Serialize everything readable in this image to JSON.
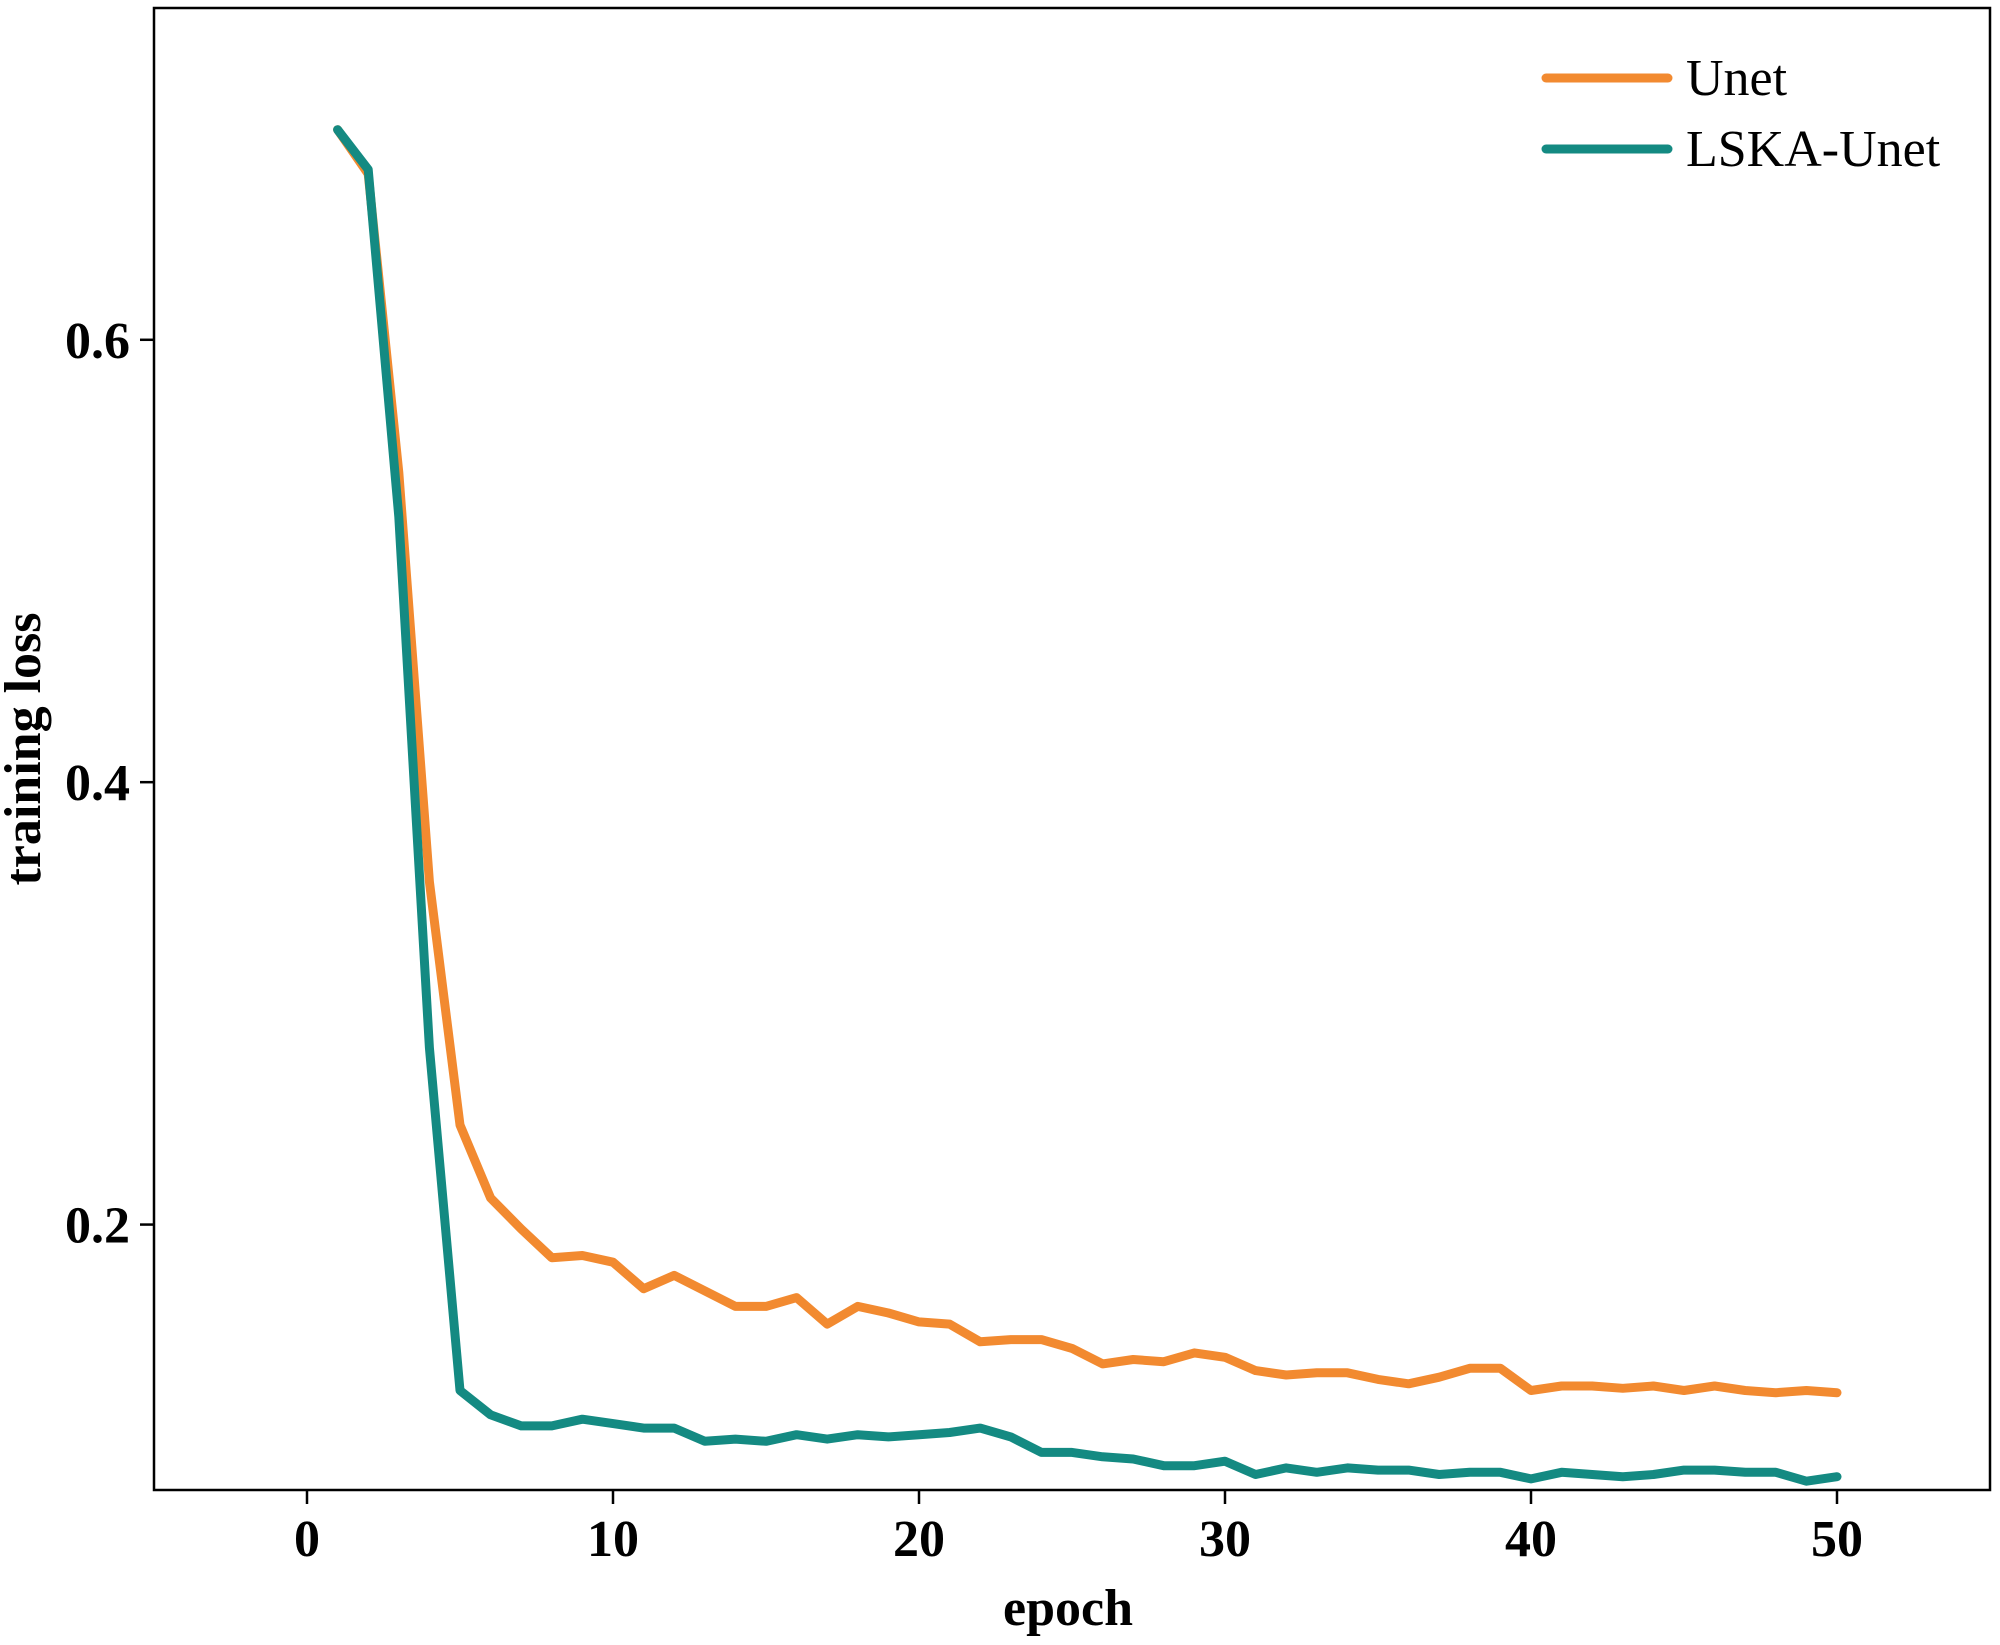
{
  "chart_data": {
    "type": "line",
    "title": "",
    "xlabel": "epoch",
    "ylabel": "training loss",
    "xlim": [
      -5,
      55
    ],
    "ylim": [
      0.08,
      0.75
    ],
    "xticks": [
      0,
      10,
      20,
      30,
      40,
      50
    ],
    "yticks": [
      0.2,
      0.4,
      0.6
    ],
    "xtick_labels": [
      "0",
      "10",
      "20",
      "30",
      "40",
      "50"
    ],
    "ytick_labels": [
      "0.2",
      "0.4",
      "0.6"
    ],
    "grid": false,
    "legend_position": "top-right",
    "x": [
      1,
      2,
      3,
      4,
      5,
      6,
      7,
      8,
      9,
      10,
      11,
      12,
      13,
      14,
      15,
      16,
      17,
      18,
      19,
      20,
      21,
      22,
      23,
      24,
      25,
      26,
      27,
      28,
      29,
      30,
      31,
      32,
      33,
      34,
      35,
      36,
      37,
      38,
      39,
      40,
      41,
      42,
      43,
      44,
      45,
      46,
      47,
      48,
      49,
      50
    ],
    "series": [
      {
        "name": "Unet",
        "color": "#F28A30",
        "values": [
          0.695,
          0.675,
          0.54,
          0.355,
          0.245,
          0.212,
          0.198,
          0.185,
          0.186,
          0.183,
          0.171,
          0.177,
          0.17,
          0.163,
          0.163,
          0.167,
          0.155,
          0.163,
          0.16,
          0.156,
          0.155,
          0.147,
          0.148,
          0.148,
          0.144,
          0.137,
          0.139,
          0.138,
          0.142,
          0.14,
          0.134,
          0.132,
          0.133,
          0.133,
          0.13,
          0.128,
          0.131,
          0.135,
          0.135,
          0.125,
          0.127,
          0.127,
          0.126,
          0.127,
          0.125,
          0.127,
          0.125,
          0.124,
          0.125,
          0.124
        ]
      },
      {
        "name": "LSKA-Unet",
        "color": "#148A82",
        "values": [
          0.695,
          0.677,
          0.52,
          0.28,
          0.125,
          0.114,
          0.109,
          0.109,
          0.112,
          0.11,
          0.108,
          0.108,
          0.102,
          0.103,
          0.102,
          0.105,
          0.103,
          0.105,
          0.104,
          0.105,
          0.106,
          0.108,
          0.104,
          0.097,
          0.097,
          0.095,
          0.094,
          0.091,
          0.091,
          0.093,
          0.087,
          0.09,
          0.088,
          0.09,
          0.089,
          0.089,
          0.087,
          0.088,
          0.088,
          0.085,
          0.088,
          0.087,
          0.086,
          0.087,
          0.089,
          0.089,
          0.088,
          0.088,
          0.084,
          0.086
        ]
      }
    ]
  }
}
